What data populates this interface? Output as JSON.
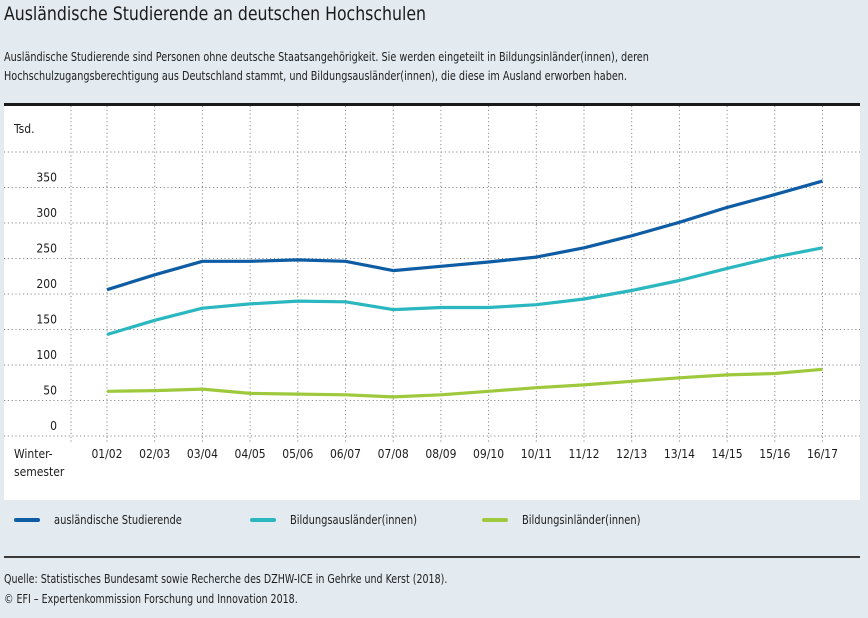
{
  "title": "Ausländische Studierende an deutschen Hochschulen",
  "intro": [
    "Ausländische Studierende sind Personen ohne deutsche Staatsangehörigkeit. Sie werden eingeteilt in Bildungsinländer(innen), deren",
    "Hochschulzugangsberechtigung aus Deutschland stammt, und Bildungsausländer(innen), die diese im Ausland erworben haben."
  ],
  "footer": {
    "source": "Quelle: Statistisches Bundesamt sowie Recherche des DZHW-ICE in Gehrke und Kerst (2018).",
    "copyright": "© EFI – Expertenkommission Forschung und Innovation 2018."
  },
  "chart_data": {
    "type": "line",
    "title": "Ausländische Studierende an deutschen Hochschulen",
    "ylabel": "Tsd.",
    "xlabel": "Winter-semester",
    "xlabel_lines": [
      "Winter-",
      "semester"
    ],
    "categories": [
      "01/02",
      "02/03",
      "03/04",
      "04/05",
      "05/06",
      "06/07",
      "07/08",
      "08/09",
      "09/10",
      "10/11",
      "11/12",
      "12/13",
      "13/14",
      "14/15",
      "15/16",
      "16/17"
    ],
    "yticks": [
      0,
      50,
      100,
      150,
      200,
      250,
      300,
      350
    ],
    "ylim": [
      0,
      400
    ],
    "grid": true,
    "legend_position": "bottom",
    "series": [
      {
        "name": "ausländische Studierende",
        "color": "#0d5ca4",
        "values": [
          206,
          227,
          246,
          246,
          248,
          246,
          233,
          239,
          245,
          252,
          265,
          282,
          301,
          322,
          340,
          359
        ]
      },
      {
        "name": "Bildungsausländer(innen)",
        "color": "#2ab7bf",
        "values": [
          143,
          163,
          180,
          186,
          190,
          189,
          178,
          181,
          181,
          185,
          193,
          205,
          219,
          236,
          252,
          265
        ]
      },
      {
        "name": "Bildungsinländer(innen)",
        "color": "#9ec93c",
        "values": [
          63,
          64,
          66,
          60,
          59,
          58,
          55,
          58,
          63,
          68,
          72,
          77,
          82,
          86,
          88,
          94
        ]
      }
    ]
  }
}
